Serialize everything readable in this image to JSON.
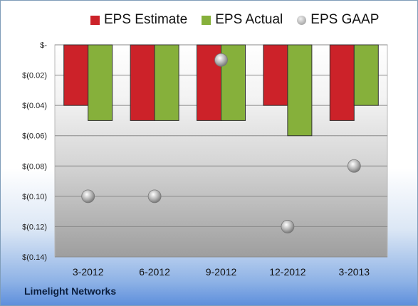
{
  "chart_data": {
    "type": "bar",
    "categories": [
      "3-2012",
      "6-2012",
      "9-2012",
      "12-2012",
      "3-2013"
    ],
    "series": [
      {
        "name": "EPS Estimate",
        "values": [
          -0.04,
          -0.05,
          -0.05,
          -0.04,
          -0.05
        ],
        "color": "#cc2229",
        "mark": "bar"
      },
      {
        "name": "EPS Actual",
        "values": [
          -0.05,
          -0.05,
          -0.05,
          -0.06,
          -0.04
        ],
        "color": "#86b03b",
        "mark": "bar"
      },
      {
        "name": "EPS GAAP",
        "values": [
          -0.1,
          -0.1,
          -0.01,
          -0.12,
          -0.08
        ],
        "color": "#a9a9a9",
        "mark": "circle"
      }
    ],
    "y_ticks": [
      0,
      -0.02,
      -0.04,
      -0.06,
      -0.08,
      -0.1,
      -0.12,
      -0.14
    ],
    "y_tick_labels": [
      "$-",
      "$(0.02)",
      "$(0.04)",
      "$(0.06)",
      "$(0.08)",
      "$(0.10)",
      "$(0.12)",
      "$(0.14)"
    ],
    "ylim": [
      -0.14,
      0
    ],
    "grid": true,
    "legend_position": "top"
  },
  "footer": {
    "company": "Limelight Networks"
  }
}
